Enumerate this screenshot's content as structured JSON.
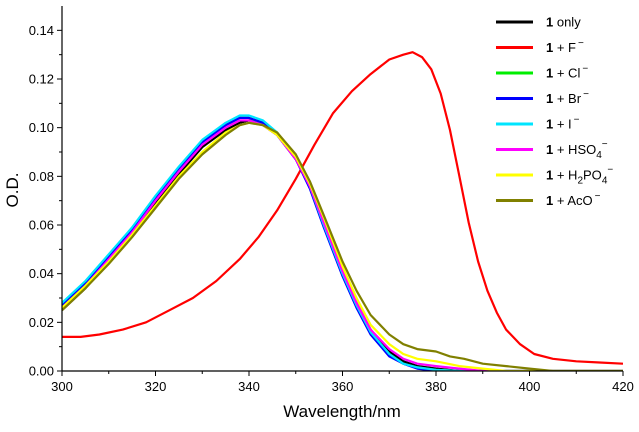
{
  "chart_data": {
    "type": "line",
    "xlabel": "Wavelength/nm",
    "ylabel": "O.D.",
    "xlim": [
      300,
      420
    ],
    "ylim": [
      0,
      0.15
    ],
    "x_ticks": [
      "300",
      "320",
      "340",
      "360",
      "380",
      "400",
      "420"
    ],
    "y_ticks": [
      "0.00",
      "0.02",
      "0.04",
      "0.06",
      "0.08",
      "0.10",
      "0.12",
      "0.14"
    ],
    "grid": false,
    "legend_position": "top-right",
    "series": [
      {
        "name": "1 only",
        "bold": "1",
        "label": "only",
        "sup": "",
        "sub": "",
        "tail": "",
        "color": "#000000",
        "points": [
          [
            300,
            0.025
          ],
          [
            305,
            0.034
          ],
          [
            310,
            0.045
          ],
          [
            315,
            0.056
          ],
          [
            320,
            0.069
          ],
          [
            325,
            0.081
          ],
          [
            330,
            0.092
          ],
          [
            335,
            0.099
          ],
          [
            338,
            0.102
          ],
          [
            340,
            0.103
          ],
          [
            343,
            0.101
          ],
          [
            346,
            0.097
          ],
          [
            350,
            0.087
          ],
          [
            353,
            0.076
          ],
          [
            356,
            0.061
          ],
          [
            360,
            0.041
          ],
          [
            363,
            0.028
          ],
          [
            366,
            0.017
          ],
          [
            370,
            0.008
          ],
          [
            373,
            0.004
          ],
          [
            376,
            0.002
          ],
          [
            380,
            0.001
          ],
          [
            385,
            0.0
          ],
          [
            420,
            0.0
          ]
        ]
      },
      {
        "name": "1 + F⁻",
        "bold": "1",
        "label": "+ F",
        "sup": "−",
        "sub": "",
        "tail": "",
        "color": "#ff0000",
        "points": [
          [
            300,
            0.014
          ],
          [
            304,
            0.014
          ],
          [
            308,
            0.015
          ],
          [
            313,
            0.017
          ],
          [
            318,
            0.02
          ],
          [
            323,
            0.025
          ],
          [
            328,
            0.03
          ],
          [
            333,
            0.037
          ],
          [
            338,
            0.046
          ],
          [
            342,
            0.055
          ],
          [
            346,
            0.066
          ],
          [
            350,
            0.079
          ],
          [
            354,
            0.093
          ],
          [
            358,
            0.106
          ],
          [
            362,
            0.115
          ],
          [
            366,
            0.122
          ],
          [
            370,
            0.128
          ],
          [
            373,
            0.13
          ],
          [
            375,
            0.131
          ],
          [
            377,
            0.129
          ],
          [
            379,
            0.124
          ],
          [
            381,
            0.114
          ],
          [
            383,
            0.099
          ],
          [
            385,
            0.08
          ],
          [
            387,
            0.061
          ],
          [
            389,
            0.045
          ],
          [
            391,
            0.033
          ],
          [
            393,
            0.024
          ],
          [
            395,
            0.017
          ],
          [
            398,
            0.011
          ],
          [
            401,
            0.007
          ],
          [
            405,
            0.005
          ],
          [
            410,
            0.004
          ],
          [
            415,
            0.0035
          ],
          [
            420,
            0.003
          ]
        ]
      },
      {
        "name": "1 + Cl⁻",
        "bold": "1",
        "label": "+ Cl",
        "sup": "−",
        "sub": "",
        "tail": "",
        "color": "#00ee00",
        "points": [
          [
            300,
            0.027
          ],
          [
            305,
            0.036
          ],
          [
            310,
            0.047
          ],
          [
            315,
            0.058
          ],
          [
            320,
            0.071
          ],
          [
            325,
            0.083
          ],
          [
            330,
            0.094
          ],
          [
            335,
            0.101
          ],
          [
            338,
            0.104
          ],
          [
            340,
            0.104
          ],
          [
            343,
            0.102
          ],
          [
            346,
            0.098
          ],
          [
            350,
            0.088
          ],
          [
            353,
            0.076
          ],
          [
            356,
            0.06
          ],
          [
            360,
            0.04
          ],
          [
            363,
            0.027
          ],
          [
            366,
            0.016
          ],
          [
            370,
            0.007
          ],
          [
            373,
            0.003
          ],
          [
            376,
            0.0015
          ],
          [
            380,
            0.0005
          ],
          [
            385,
            0.0
          ],
          [
            420,
            0.0
          ]
        ]
      },
      {
        "name": "1 + Br⁻",
        "bold": "1",
        "label": "+ Br",
        "sup": "−",
        "sub": "",
        "tail": "",
        "color": "#0000ff",
        "points": [
          [
            300,
            0.027
          ],
          [
            305,
            0.036
          ],
          [
            310,
            0.047
          ],
          [
            315,
            0.058
          ],
          [
            320,
            0.071
          ],
          [
            325,
            0.083
          ],
          [
            330,
            0.094
          ],
          [
            335,
            0.101
          ],
          [
            338,
            0.104
          ],
          [
            340,
            0.104
          ],
          [
            343,
            0.102
          ],
          [
            346,
            0.097
          ],
          [
            350,
            0.087
          ],
          [
            353,
            0.075
          ],
          [
            356,
            0.059
          ],
          [
            360,
            0.039
          ],
          [
            363,
            0.026
          ],
          [
            366,
            0.015
          ],
          [
            370,
            0.006
          ],
          [
            373,
            0.003
          ],
          [
            376,
            0.001
          ],
          [
            380,
            0.0
          ],
          [
            420,
            0.0
          ]
        ]
      },
      {
        "name": "1 + I⁻",
        "bold": "1",
        "label": "+ I",
        "sup": "−",
        "sub": "",
        "tail": "",
        "color": "#00e5ff",
        "points": [
          [
            300,
            0.028
          ],
          [
            305,
            0.037
          ],
          [
            310,
            0.048
          ],
          [
            315,
            0.059
          ],
          [
            320,
            0.072
          ],
          [
            325,
            0.084
          ],
          [
            330,
            0.095
          ],
          [
            335,
            0.102
          ],
          [
            338,
            0.105
          ],
          [
            340,
            0.105
          ],
          [
            343,
            0.103
          ],
          [
            346,
            0.098
          ],
          [
            350,
            0.088
          ],
          [
            353,
            0.076
          ],
          [
            356,
            0.06
          ],
          [
            360,
            0.04
          ],
          [
            363,
            0.027
          ],
          [
            366,
            0.016
          ],
          [
            370,
            0.007
          ],
          [
            373,
            0.003
          ],
          [
            376,
            0.0015
          ],
          [
            380,
            0.0005
          ],
          [
            385,
            0.0
          ],
          [
            420,
            0.0
          ]
        ]
      },
      {
        "name": "1 + HSO₄⁻",
        "bold": "1",
        "label": "+ HSO",
        "sup": "−",
        "sub": "4",
        "tail": "",
        "color": "#ff00ff",
        "points": [
          [
            300,
            0.026
          ],
          [
            305,
            0.035
          ],
          [
            310,
            0.046
          ],
          [
            315,
            0.057
          ],
          [
            320,
            0.07
          ],
          [
            325,
            0.082
          ],
          [
            330,
            0.093
          ],
          [
            335,
            0.1
          ],
          [
            338,
            0.103
          ],
          [
            340,
            0.103
          ],
          [
            343,
            0.101
          ],
          [
            346,
            0.097
          ],
          [
            350,
            0.087
          ],
          [
            353,
            0.076
          ],
          [
            356,
            0.061
          ],
          [
            360,
            0.041
          ],
          [
            363,
            0.028
          ],
          [
            366,
            0.017
          ],
          [
            370,
            0.009
          ],
          [
            373,
            0.005
          ],
          [
            376,
            0.003
          ],
          [
            380,
            0.002
          ],
          [
            385,
            0.001
          ],
          [
            390,
            0.0
          ],
          [
            420,
            0.0
          ]
        ]
      },
      {
        "name": "1 + H₂PO₄⁻",
        "bold": "1",
        "label": "+ H",
        "sup": "−",
        "sub": "2",
        "tail": "PO",
        "color": "#ffff00",
        "points": [
          [
            300,
            0.026
          ],
          [
            305,
            0.035
          ],
          [
            310,
            0.045
          ],
          [
            315,
            0.056
          ],
          [
            320,
            0.068
          ],
          [
            325,
            0.08
          ],
          [
            330,
            0.09
          ],
          [
            335,
            0.098
          ],
          [
            338,
            0.101
          ],
          [
            340,
            0.102
          ],
          [
            343,
            0.101
          ],
          [
            346,
            0.097
          ],
          [
            350,
            0.088
          ],
          [
            353,
            0.077
          ],
          [
            356,
            0.063
          ],
          [
            360,
            0.043
          ],
          [
            363,
            0.03
          ],
          [
            366,
            0.019
          ],
          [
            370,
            0.011
          ],
          [
            373,
            0.007
          ],
          [
            376,
            0.005
          ],
          [
            380,
            0.004
          ],
          [
            385,
            0.002
          ],
          [
            390,
            0.001
          ],
          [
            395,
            0.0
          ],
          [
            420,
            0.0
          ]
        ]
      },
      {
        "name": "1 + AcO⁻",
        "bold": "1",
        "label": "+ AcO",
        "sup": "−",
        "sub": "",
        "tail": "",
        "color": "#808000",
        "points": [
          [
            300,
            0.025
          ],
          [
            305,
            0.034
          ],
          [
            310,
            0.044
          ],
          [
            315,
            0.055
          ],
          [
            320,
            0.067
          ],
          [
            325,
            0.079
          ],
          [
            330,
            0.089
          ],
          [
            335,
            0.097
          ],
          [
            338,
            0.101
          ],
          [
            340,
            0.102
          ],
          [
            343,
            0.101
          ],
          [
            346,
            0.098
          ],
          [
            350,
            0.089
          ],
          [
            353,
            0.078
          ],
          [
            356,
            0.064
          ],
          [
            360,
            0.045
          ],
          [
            363,
            0.033
          ],
          [
            366,
            0.023
          ],
          [
            370,
            0.015
          ],
          [
            373,
            0.011
          ],
          [
            376,
            0.009
          ],
          [
            380,
            0.008
          ],
          [
            383,
            0.006
          ],
          [
            386,
            0.005
          ],
          [
            390,
            0.003
          ],
          [
            395,
            0.002
          ],
          [
            400,
            0.001
          ],
          [
            405,
            0.0
          ],
          [
            420,
            0.0
          ]
        ]
      }
    ]
  }
}
